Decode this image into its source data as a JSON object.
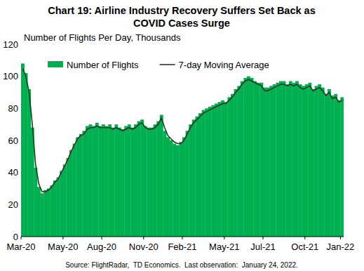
{
  "chart_data": {
    "type": "bar",
    "title": "Chart 19: Airline Industry Recovery Suffers Set Back as COVID Cases Surge",
    "y_label": "Number of Flights Per Day, Thousands",
    "source": "Source: FlightRadar,  TD Economics.  Last observation:  January 24, 2022.",
    "categories": [
      "Mar-20",
      null,
      null,
      null,
      null,
      null,
      null,
      null,
      null,
      null,
      null,
      null,
      null,
      "May-20",
      null,
      null,
      null,
      null,
      null,
      null,
      null,
      null,
      null,
      null,
      null,
      "Aug-20",
      null,
      null,
      null,
      null,
      null,
      null,
      null,
      null,
      null,
      null,
      null,
      null,
      "Nov-20",
      null,
      null,
      null,
      null,
      null,
      null,
      null,
      null,
      null,
      null,
      null,
      "Feb-21",
      null,
      null,
      null,
      null,
      null,
      null,
      null,
      null,
      null,
      null,
      null,
      null,
      "May-21",
      null,
      null,
      null,
      null,
      null,
      null,
      null,
      null,
      null,
      null,
      null,
      "Jul-21",
      null,
      null,
      null,
      null,
      null,
      null,
      null,
      null,
      null,
      null,
      null,
      null,
      "Oct-21",
      null,
      null,
      null,
      null,
      null,
      null,
      null,
      null,
      null,
      null,
      "Jan-22"
    ],
    "series": [
      {
        "name": "Number of Flights",
        "type": "bar",
        "color": "#00b050",
        "values": [
          108,
          102,
          92,
          68,
          43,
          31,
          27,
          29,
          30,
          32,
          35,
          37,
          41,
          45,
          49,
          54,
          58,
          62,
          64,
          66,
          69,
          70,
          69,
          71,
          69,
          70,
          69,
          70,
          68,
          70,
          68,
          67,
          69,
          70,
          68,
          70,
          72,
          73,
          69,
          68,
          68,
          70,
          72,
          76,
          66,
          62,
          60,
          58,
          57,
          59,
          62,
          66,
          70,
          73,
          75,
          77,
          79,
          80,
          81,
          82,
          83,
          84,
          85,
          84,
          87,
          89,
          92,
          94,
          97,
          99,
          100,
          99,
          97,
          96,
          96,
          93,
          93,
          94,
          95,
          96,
          97,
          97,
          95,
          97,
          96,
          97,
          95,
          94,
          95,
          96,
          92,
          94,
          95,
          93,
          89,
          92,
          88,
          89,
          85,
          87
        ]
      },
      {
        "name": "7-day Moving Average",
        "type": "line",
        "color": "#1f3a1f",
        "line_style": "solid",
        "values": [
          105,
          100,
          90,
          70,
          45,
          33,
          28,
          28,
          29,
          31,
          34,
          36,
          40,
          44,
          48,
          53,
          57,
          61,
          63,
          64,
          67,
          68,
          68,
          69,
          68,
          68,
          68,
          68,
          67,
          68,
          67,
          66,
          67,
          68,
          67,
          68,
          70,
          71,
          68,
          67,
          67,
          68,
          70,
          74,
          68,
          63,
          61,
          59,
          58,
          58,
          60,
          64,
          68,
          71,
          73,
          75,
          77,
          78,
          79,
          80,
          81,
          82,
          83,
          83,
          85,
          87,
          90,
          92,
          95,
          97,
          98,
          97,
          96,
          95,
          94,
          91,
          91,
          92,
          93,
          94,
          95,
          95,
          94,
          95,
          94,
          95,
          93,
          92,
          93,
          94,
          91,
          92,
          93,
          91,
          88,
          90,
          86,
          87,
          84,
          85
        ]
      }
    ],
    "ylim": [
      0,
      120
    ],
    "yticks": [
      0,
      20,
      40,
      60,
      80,
      100,
      120
    ],
    "grid": false,
    "legend": "top"
  }
}
